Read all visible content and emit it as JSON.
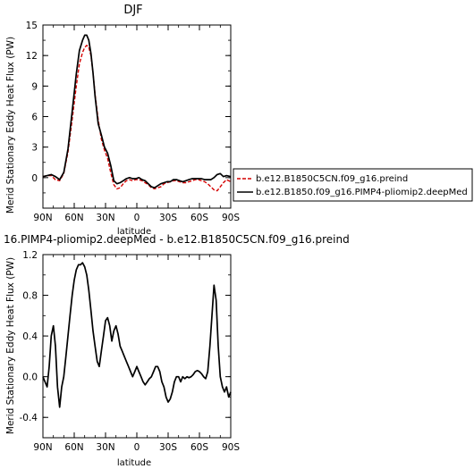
{
  "chart_data": [
    {
      "type": "line",
      "title": "DJF",
      "xlabel": "",
      "ylabel": "Merid Stationary Eddy Heat Flux (PW)",
      "xlim": [
        90,
        -90
      ],
      "ylim": [
        -3,
        15
      ],
      "x_ticks": [
        90,
        60,
        30,
        0,
        -30,
        -60,
        -90
      ],
      "x_tick_labels": [
        "90N",
        "60N",
        "30N",
        "0",
        "30S",
        "60S",
        "90S"
      ],
      "y_ticks": [
        0,
        3,
        6,
        9,
        12,
        15
      ],
      "y_tick_labels": [
        "0",
        "3",
        "6",
        "9",
        "12",
        "15"
      ],
      "legend_position": "right",
      "series": [
        {
          "name": "b.e12.B1850C5CN.f09_g16.preind",
          "color": "#d40000",
          "style": "dashed",
          "x": [
            90,
            86,
            82,
            78,
            74,
            70,
            66,
            62,
            58,
            55,
            52,
            50,
            48,
            46,
            44,
            42,
            40,
            37,
            34,
            31,
            28,
            25,
            22,
            19,
            16,
            13,
            10,
            7,
            4,
            1,
            -2,
            -5,
            -8,
            -11,
            -14,
            -17,
            -20,
            -23,
            -26,
            -29,
            -32,
            -35,
            -38,
            -41,
            -44,
            -47,
            -50,
            -53,
            -56,
            -59,
            -62,
            -65,
            -68,
            -71,
            -74,
            -77,
            -80,
            -83,
            -86,
            -90
          ],
          "y": [
            0.1,
            0.2,
            0.2,
            -0.2,
            -0.3,
            0.4,
            2.5,
            5.7,
            9.0,
            11.2,
            12.3,
            12.8,
            13.0,
            12.8,
            12.0,
            10.3,
            8.2,
            5.7,
            3.8,
            2.7,
            1.9,
            0.5,
            -0.7,
            -1.1,
            -1.0,
            -0.6,
            -0.3,
            -0.2,
            -0.3,
            -0.2,
            -0.2,
            -0.3,
            -0.5,
            -0.7,
            -1.0,
            -1.1,
            -1.0,
            -0.9,
            -0.6,
            -0.5,
            -0.4,
            -0.3,
            -0.3,
            -0.4,
            -0.5,
            -0.5,
            -0.4,
            -0.3,
            -0.2,
            -0.2,
            -0.3,
            -0.4,
            -0.6,
            -0.9,
            -1.2,
            -1.3,
            -0.9,
            -0.5,
            -0.2,
            -0.4
          ]
        },
        {
          "name": "b.e12.B1850.f09_g16.PIMP4-pliomip2.deepMed",
          "color": "#000000",
          "style": "solid",
          "x": [
            90,
            86,
            82,
            78,
            74,
            70,
            66,
            62,
            58,
            55,
            52,
            50,
            48,
            46,
            44,
            42,
            40,
            37,
            34,
            31,
            28,
            25,
            22,
            19,
            16,
            13,
            10,
            7,
            4,
            1,
            -2,
            -5,
            -8,
            -11,
            -14,
            -17,
            -20,
            -23,
            -26,
            -29,
            -32,
            -35,
            -38,
            -41,
            -44,
            -47,
            -50,
            -53,
            -56,
            -59,
            -62,
            -65,
            -68,
            -71,
            -74,
            -77,
            -80,
            -83,
            -86,
            -90
          ],
          "y": [
            0.1,
            0.2,
            0.3,
            0.1,
            -0.2,
            0.5,
            2.8,
            6.5,
            10.2,
            12.5,
            13.5,
            14.0,
            14.0,
            13.5,
            12.2,
            10.3,
            8.0,
            5.3,
            4.2,
            3.0,
            2.4,
            1.2,
            -0.3,
            -0.6,
            -0.5,
            -0.3,
            -0.1,
            0.0,
            -0.1,
            -0.1,
            0.0,
            -0.2,
            -0.3,
            -0.6,
            -0.9,
            -1.0,
            -0.8,
            -0.6,
            -0.5,
            -0.4,
            -0.4,
            -0.2,
            -0.2,
            -0.3,
            -0.4,
            -0.3,
            -0.2,
            -0.1,
            -0.1,
            -0.1,
            -0.1,
            -0.2,
            -0.2,
            -0.2,
            0.0,
            0.3,
            0.4,
            0.1,
            0.2,
            0.1
          ]
        }
      ]
    },
    {
      "type": "line",
      "title": "16.PIMP4-pliomip2.deepMed - b.e12.B1850C5CN.f09_g16.preind",
      "xlabel": "latitude",
      "ylabel": "Merid Stationary Eddy Heat Flux (PW)",
      "xlim": [
        90,
        -90
      ],
      "ylim": [
        -0.6,
        1.2
      ],
      "x_ticks": [
        90,
        60,
        30,
        0,
        -30,
        -60,
        -90
      ],
      "x_tick_labels": [
        "90N",
        "60N",
        "30N",
        "0",
        "30S",
        "60S",
        "90S"
      ],
      "y_ticks": [
        -0.4,
        0,
        0.4,
        0.8,
        1.2
      ],
      "y_tick_labels": [
        "-0.4",
        "0.0",
        "0.4",
        "0.8",
        "1.2"
      ],
      "series": [
        {
          "name": "",
          "color": "#000000",
          "style": "solid",
          "x": [
            90,
            88,
            86,
            84,
            82,
            80,
            78,
            76,
            74,
            72,
            70,
            68,
            66,
            64,
            62,
            60,
            58,
            56,
            54,
            52,
            50,
            48,
            46,
            44,
            42,
            40,
            38,
            36,
            34,
            32,
            30,
            28,
            26,
            24,
            22,
            20,
            18,
            16,
            14,
            12,
            10,
            8,
            6,
            4,
            2,
            0,
            -2,
            -4,
            -6,
            -8,
            -10,
            -12,
            -14,
            -16,
            -18,
            -20,
            -22,
            -24,
            -26,
            -28,
            -30,
            -32,
            -34,
            -36,
            -38,
            -40,
            -42,
            -44,
            -46,
            -48,
            -50,
            -52,
            -54,
            -56,
            -58,
            -60,
            -62,
            -64,
            -66,
            -68,
            -70,
            -72,
            -74,
            -76,
            -78,
            -80,
            -82,
            -84,
            -86,
            -88,
            -90
          ],
          "y": [
            0.0,
            -0.05,
            -0.1,
            0.1,
            0.4,
            0.5,
            0.3,
            -0.1,
            -0.3,
            -0.1,
            0.0,
            0.2,
            0.4,
            0.6,
            0.8,
            0.95,
            1.05,
            1.1,
            1.1,
            1.12,
            1.08,
            1.0,
            0.85,
            0.65,
            0.45,
            0.3,
            0.15,
            0.1,
            0.25,
            0.4,
            0.55,
            0.58,
            0.5,
            0.35,
            0.45,
            0.5,
            0.42,
            0.3,
            0.25,
            0.2,
            0.15,
            0.1,
            0.05,
            0.0,
            0.05,
            0.1,
            0.05,
            0.0,
            -0.05,
            -0.08,
            -0.05,
            -0.02,
            0.0,
            0.05,
            0.1,
            0.1,
            0.05,
            -0.05,
            -0.1,
            -0.2,
            -0.25,
            -0.22,
            -0.15,
            -0.05,
            0.0,
            0.0,
            -0.05,
            0.0,
            -0.02,
            0.0,
            -0.01,
            0.0,
            0.02,
            0.05,
            0.06,
            0.05,
            0.03,
            0.0,
            -0.02,
            0.05,
            0.3,
            0.6,
            0.9,
            0.75,
            0.3,
            0.0,
            -0.1,
            -0.15,
            -0.1,
            -0.2,
            -0.15
          ]
        }
      ]
    }
  ]
}
